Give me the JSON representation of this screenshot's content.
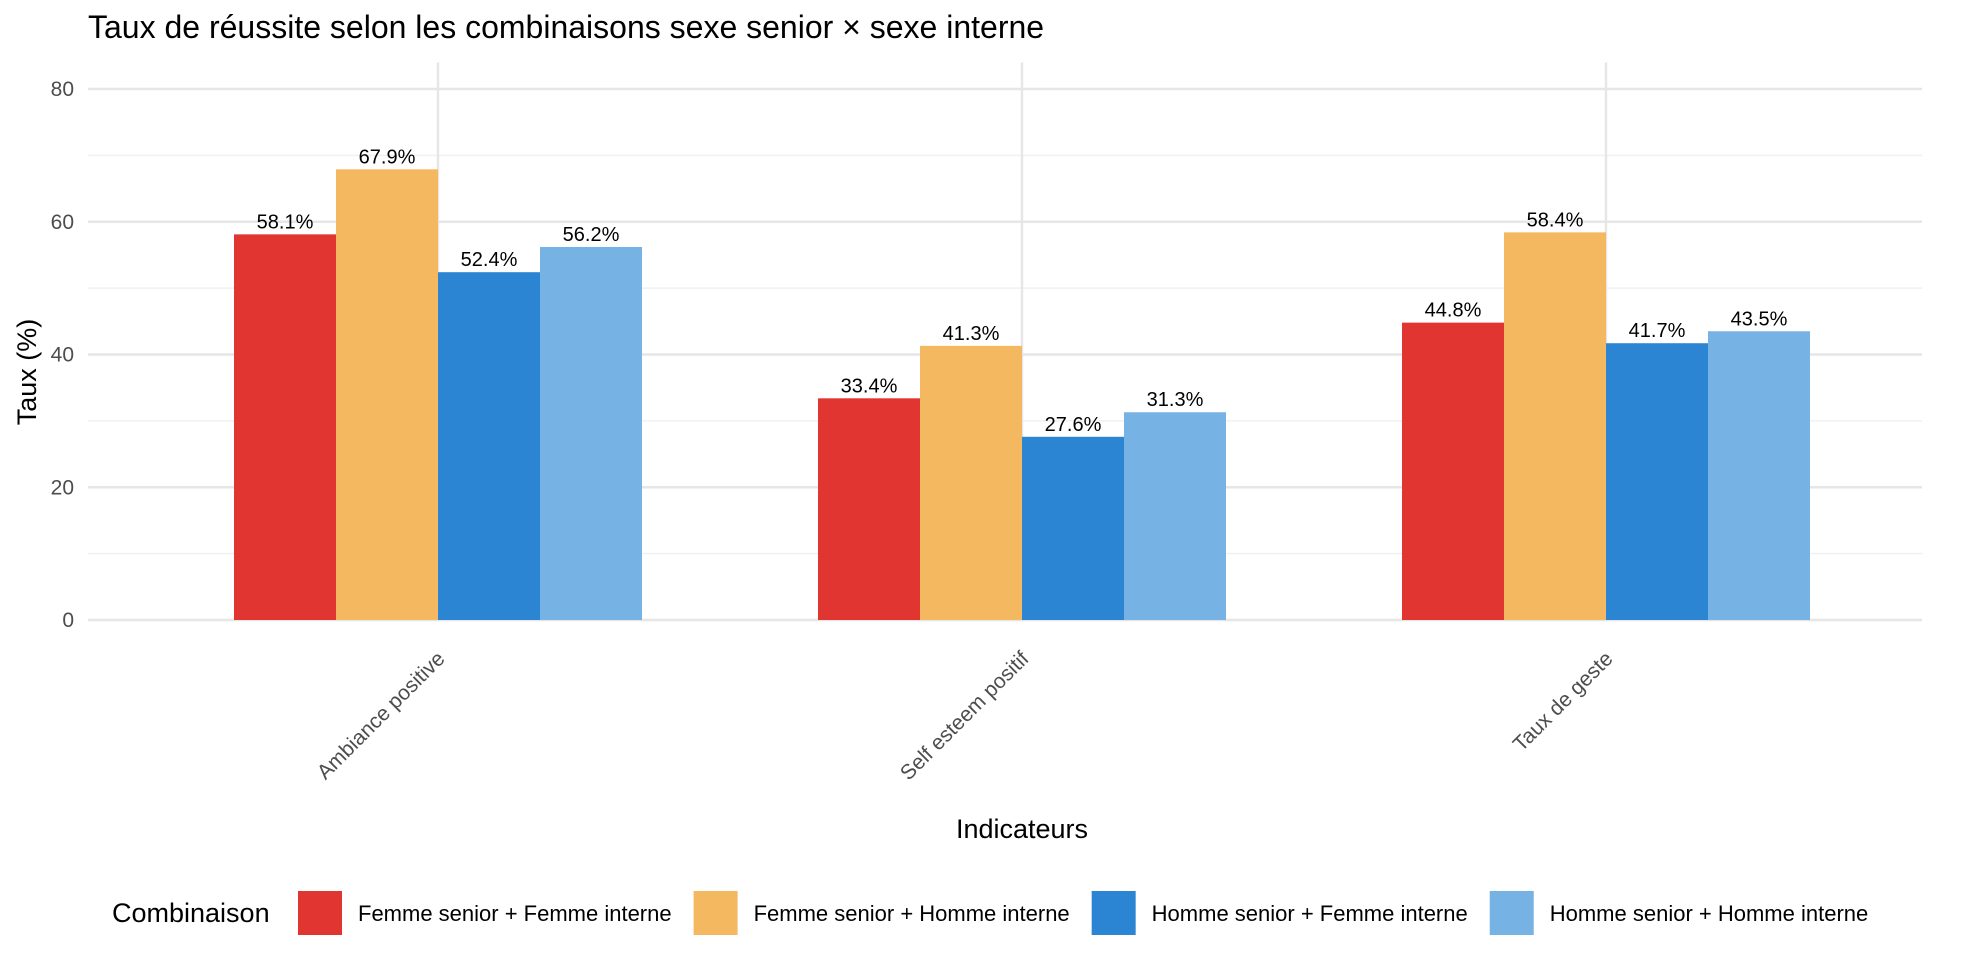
{
  "chart_data": {
    "type": "bar",
    "title": "Taux de réussite selon les combinaisons sexe senior × sexe interne",
    "xlabel": "Indicateurs",
    "ylabel": "Taux (%)",
    "ylim": [
      0,
      84
    ],
    "yticks": [
      0,
      20,
      40,
      60,
      80
    ],
    "yticks_minor": [
      10,
      30,
      50,
      70
    ],
    "grid": true,
    "legend_position": "bottom",
    "legend_title": "Combinaison",
    "categories": [
      "Ambiance positive",
      "Self esteem positif",
      "Taux de geste"
    ],
    "series": [
      {
        "name": "Femme senior + Femme interne",
        "color": "#E03530",
        "values": [
          58.1,
          33.4,
          44.8
        ],
        "labels": [
          "58.1%",
          "33.4%",
          "44.8%"
        ]
      },
      {
        "name": "Femme senior + Homme interne",
        "color": "#F4B860",
        "values": [
          67.9,
          41.3,
          58.4
        ],
        "labels": [
          "67.9%",
          "41.3%",
          "58.4%"
        ]
      },
      {
        "name": "Homme senior + Femme interne",
        "color": "#2B85D3",
        "values": [
          52.4,
          27.6,
          41.7
        ],
        "labels": [
          "52.4%",
          "27.6%",
          "41.7%"
        ]
      },
      {
        "name": "Homme senior + Homme interne",
        "color": "#76B2E3",
        "values": [
          56.2,
          31.3,
          43.5
        ],
        "labels": [
          "56.2%",
          "31.3%",
          "43.5%"
        ]
      }
    ]
  }
}
